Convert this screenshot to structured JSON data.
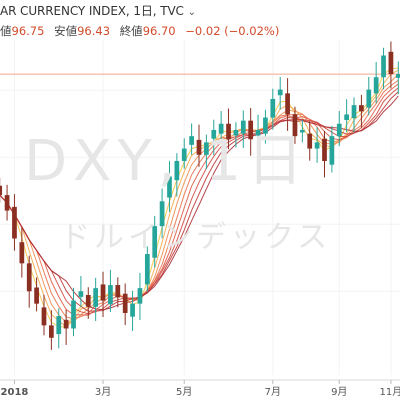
{
  "header": {
    "title_line": "AR CURRENCY INDEX, 1日, TVC",
    "chevron_icon": "chevron-down-icon",
    "ohlc": [
      {
        "label": "値",
        "value": "96.75"
      },
      {
        "label": "安値",
        "value": "96.43"
      },
      {
        "label": "終値",
        "value": "96.70"
      }
    ],
    "change": "−0.02 (−0.02%)"
  },
  "watermark": {
    "main": "DXY, 1日",
    "sub": "ドルインデックス"
  },
  "colors": {
    "bull": "#26a69a",
    "bear": "#8b2f22",
    "price_line": "#f0a88a",
    "accent_red": "#d24b2a",
    "ribbon": [
      "#f4c542",
      "#f6a94a",
      "#f08c4e",
      "#e8714c",
      "#df5a45",
      "#d04840",
      "#bf3a3a",
      "#ad3036"
    ]
  },
  "chart_data": {
    "type": "candlestick",
    "title": "",
    "x_ticks": [
      "2018",
      "3月",
      "5月",
      "7月",
      "9月",
      "11月"
    ],
    "xlim": [
      0,
      55
    ],
    "ylim": [
      87.0,
      97.8
    ],
    "current_price_line": 96.7,
    "series_price": [
      {
        "i": 0,
        "close": 92.8
      },
      {
        "i": 1,
        "close": 92.3
      },
      {
        "i": 2,
        "close": 91.4
      },
      {
        "i": 3,
        "close": 90.6
      },
      {
        "i": 4,
        "close": 89.7
      },
      {
        "i": 5,
        "close": 89.3
      },
      {
        "i": 6,
        "close": 88.6
      },
      {
        "i": 7,
        "close": 88.2
      },
      {
        "i": 8,
        "close": 88.9
      },
      {
        "i": 9,
        "close": 88.5
      },
      {
        "i": 10,
        "close": 89.4
      },
      {
        "i": 11,
        "close": 89.7
      },
      {
        "i": 12,
        "close": 89.2
      },
      {
        "i": 13,
        "close": 89.8
      },
      {
        "i": 14,
        "close": 89.4
      },
      {
        "i": 15,
        "close": 89.9
      },
      {
        "i": 16,
        "close": 89.5
      },
      {
        "i": 17,
        "close": 89.0
      },
      {
        "i": 18,
        "close": 89.3
      },
      {
        "i": 19,
        "close": 89.8
      },
      {
        "i": 20,
        "close": 90.9
      },
      {
        "i": 21,
        "close": 91.8
      },
      {
        "i": 22,
        "close": 92.6
      },
      {
        "i": 23,
        "close": 93.4
      },
      {
        "i": 24,
        "close": 93.9
      },
      {
        "i": 25,
        "close": 94.3
      },
      {
        "i": 26,
        "close": 94.7
      },
      {
        "i": 27,
        "close": 94.1
      },
      {
        "i": 28,
        "close": 94.5
      },
      {
        "i": 29,
        "close": 94.9
      },
      {
        "i": 30,
        "close": 95.1
      },
      {
        "i": 31,
        "close": 94.6
      },
      {
        "i": 32,
        "close": 94.9
      },
      {
        "i": 33,
        "close": 95.2
      },
      {
        "i": 34,
        "close": 94.6
      },
      {
        "i": 35,
        "close": 94.9
      },
      {
        "i": 36,
        "close": 95.3
      },
      {
        "i": 37,
        "close": 95.9
      },
      {
        "i": 38,
        "close": 96.2
      },
      {
        "i": 39,
        "close": 95.4
      },
      {
        "i": 40,
        "close": 94.7
      },
      {
        "i": 41,
        "close": 94.9
      },
      {
        "i": 42,
        "close": 94.3
      },
      {
        "i": 43,
        "close": 94.5
      },
      {
        "i": 44,
        "close": 93.9
      },
      {
        "i": 45,
        "close": 94.7
      },
      {
        "i": 46,
        "close": 95.1
      },
      {
        "i": 47,
        "close": 95.4
      },
      {
        "i": 48,
        "close": 95.7
      },
      {
        "i": 49,
        "close": 95.5
      },
      {
        "i": 50,
        "close": 96.2
      },
      {
        "i": 51,
        "close": 96.6
      },
      {
        "i": 52,
        "close": 97.3
      },
      {
        "i": 53,
        "close": 96.7
      },
      {
        "i": 54,
        "close": 96.7
      }
    ],
    "x_tick_index": [
      2,
      14,
      25,
      37,
      46,
      53
    ]
  }
}
